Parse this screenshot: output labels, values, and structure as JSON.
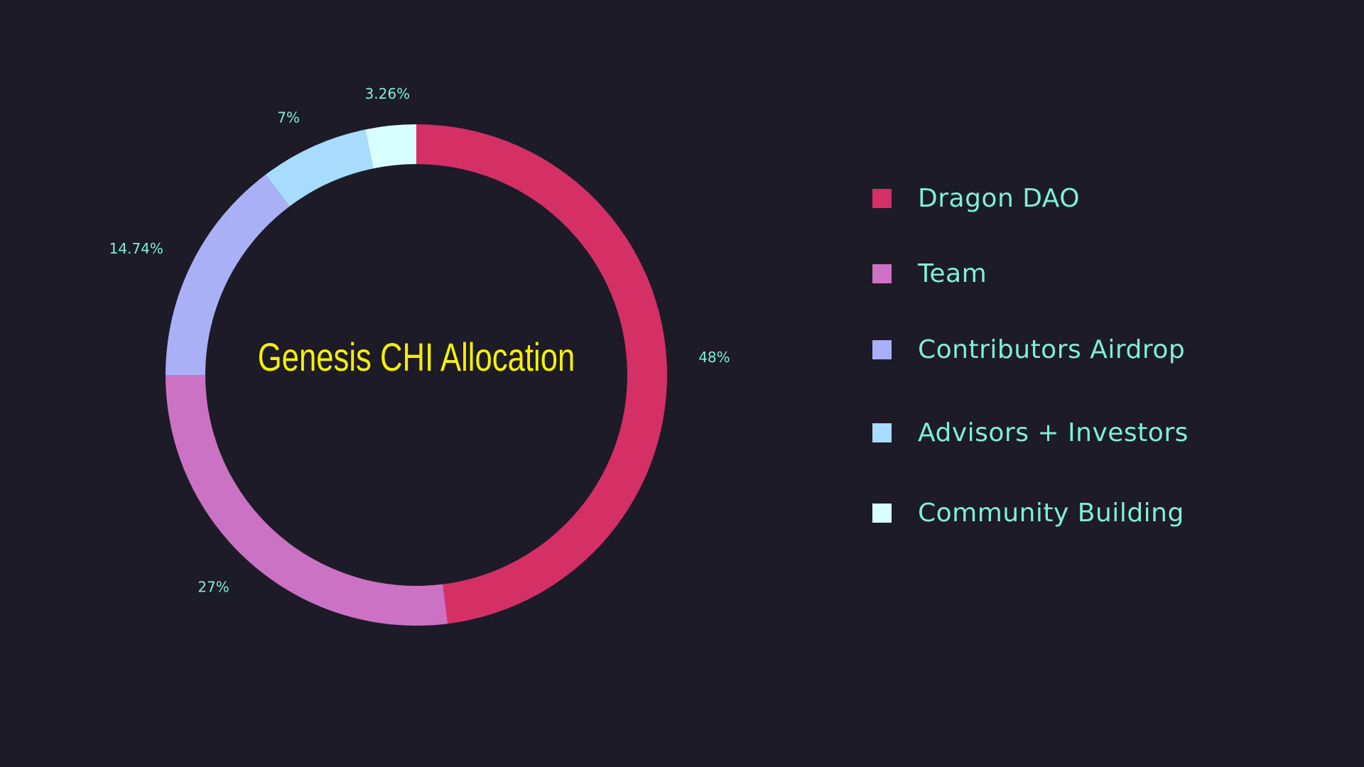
{
  "chart_data": {
    "type": "pie",
    "variant": "donut",
    "title": "Genesis CHI Allocation",
    "categories": [
      "Dragon DAO",
      "Team",
      "Contributors Airdrop",
      "Advisors + Investors",
      "Community Building"
    ],
    "values": [
      48,
      27,
      14.74,
      7,
      3.26
    ],
    "data_labels": [
      "48%",
      "27%",
      "14.74%",
      "7%",
      "3.26%"
    ],
    "colors": [
      "#d43066",
      "#cc72c4",
      "#aab0f5",
      "#a8dcff",
      "#d8ffff"
    ],
    "legend_placement": "right",
    "title_color": "#f5f000",
    "label_color": "#7ff0d4"
  }
}
